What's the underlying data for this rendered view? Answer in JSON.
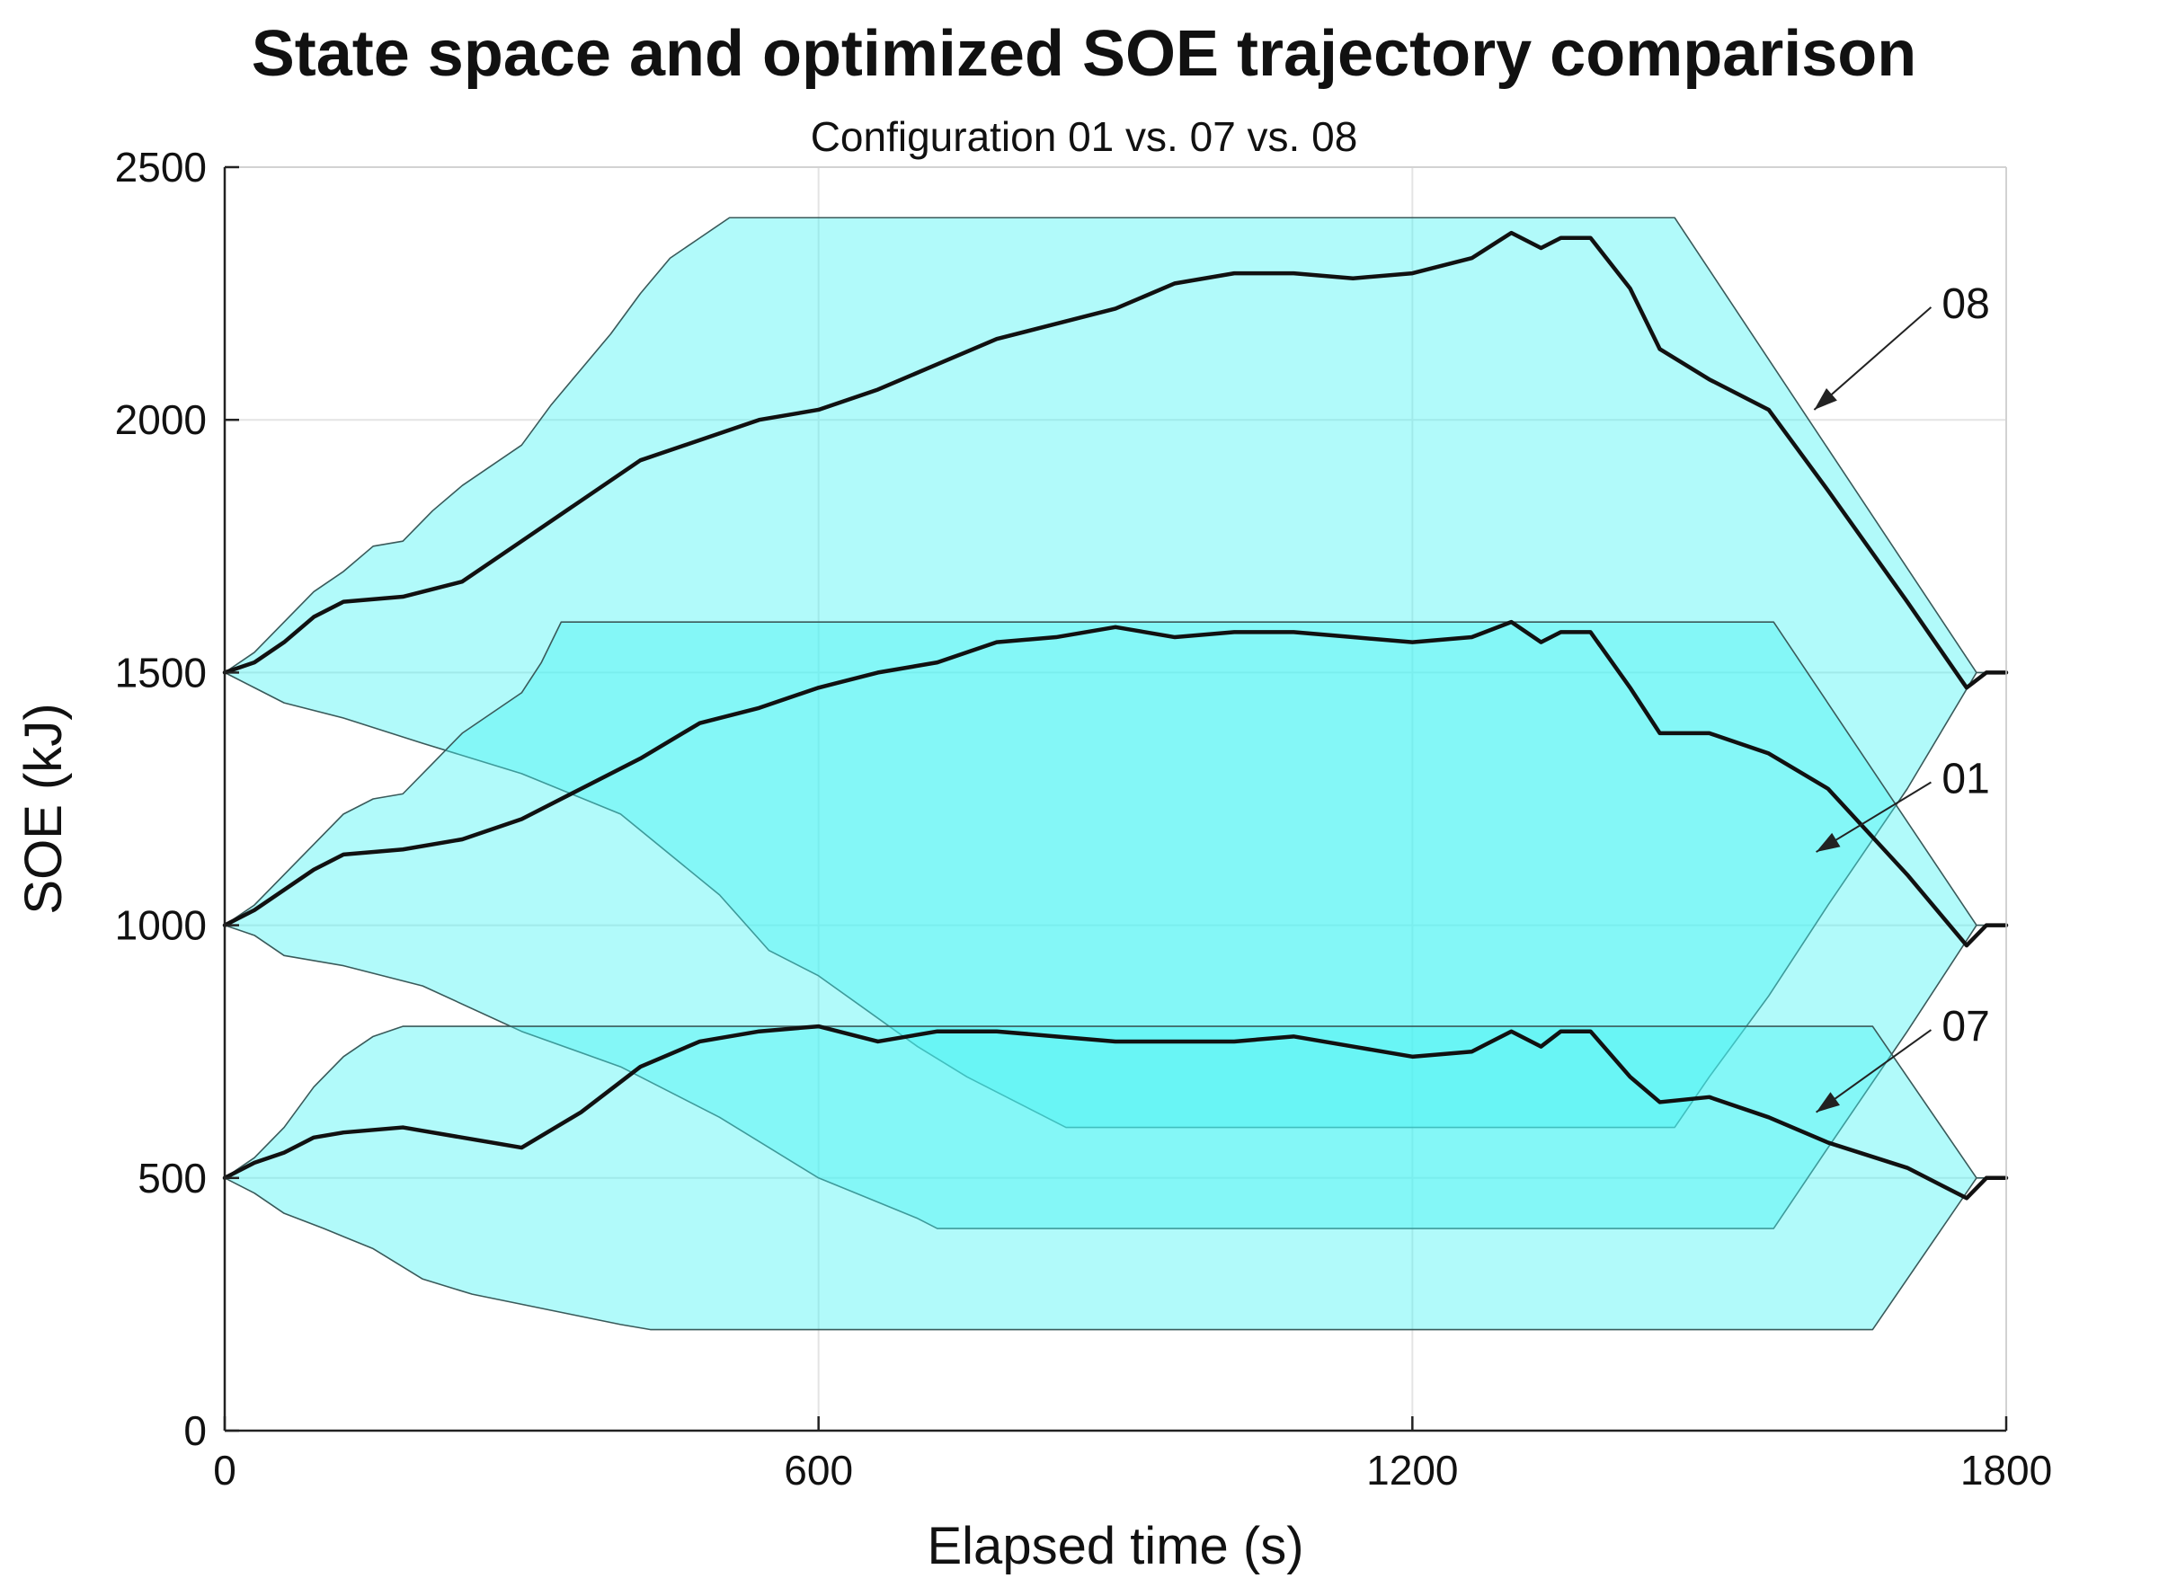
{
  "chart_data": {
    "type": "area",
    "title": "State space and optimized SOE trajectory comparison",
    "subtitle": "Configuration 01 vs. 07 vs. 08",
    "xlabel": "Elapsed time (s)",
    "ylabel": "SOE (kJ)",
    "xlim": [
      0,
      1800
    ],
    "ylim": [
      0,
      2500
    ],
    "xticks": [
      0,
      600,
      1200,
      1800
    ],
    "yticks": [
      0,
      500,
      1000,
      1500,
      2000,
      2500
    ],
    "grid": true,
    "colors": {
      "band_fill": "#44f2f2",
      "band_edge": "#3a5a5a",
      "trajectory": "#111111",
      "grid": "#e4e4e4",
      "axis": "#222222"
    },
    "series": [
      {
        "name": "08",
        "upper": {
          "x": [
            0,
            30,
            60,
            90,
            120,
            150,
            180,
            210,
            240,
            270,
            300,
            330,
            360,
            390,
            420,
            450,
            480,
            510,
            1465,
            1770,
            1800
          ],
          "y": [
            1500,
            1540,
            1600,
            1660,
            1700,
            1750,
            1760,
            1820,
            1870,
            1910,
            1950,
            2030,
            2100,
            2170,
            2250,
            2320,
            2360,
            2400,
            2400,
            1500,
            1500
          ]
        },
        "lower": {
          "x": [
            0,
            30,
            60,
            120,
            200,
            300,
            400,
            500,
            550,
            600,
            650,
            700,
            750,
            800,
            830,
            850,
            870,
            1465,
            1500,
            1560,
            1620,
            1700,
            1770,
            1800
          ],
          "y": [
            1500,
            1470,
            1440,
            1410,
            1360,
            1300,
            1220,
            1060,
            950,
            900,
            830,
            760,
            700,
            650,
            620,
            600,
            600,
            600,
            700,
            860,
            1040,
            1270,
            1500,
            1500
          ]
        },
        "trajectory": {
          "x": [
            0,
            30,
            60,
            90,
            120,
            180,
            240,
            300,
            360,
            420,
            480,
            540,
            600,
            660,
            720,
            780,
            840,
            900,
            960,
            1020,
            1080,
            1140,
            1200,
            1260,
            1300,
            1330,
            1350,
            1380,
            1420,
            1450,
            1500,
            1560,
            1620,
            1700,
            1760,
            1780,
            1800
          ],
          "y": [
            1500,
            1520,
            1560,
            1610,
            1640,
            1650,
            1680,
            1760,
            1840,
            1920,
            1960,
            2000,
            2020,
            2060,
            2110,
            2160,
            2190,
            2220,
            2270,
            2290,
            2290,
            2280,
            2290,
            2320,
            2370,
            2340,
            2360,
            2360,
            2260,
            2140,
            2080,
            2020,
            1860,
            1640,
            1470,
            1500,
            1500
          ]
        }
      },
      {
        "name": "01",
        "upper": {
          "x": [
            0,
            30,
            60,
            90,
            120,
            150,
            180,
            210,
            240,
            270,
            300,
            320,
            340,
            1565,
            1770,
            1800
          ],
          "y": [
            1000,
            1040,
            1100,
            1160,
            1220,
            1250,
            1260,
            1320,
            1380,
            1420,
            1460,
            1520,
            1600,
            1600,
            1000,
            1000
          ]
        },
        "lower": {
          "x": [
            0,
            30,
            60,
            120,
            200,
            300,
            400,
            500,
            550,
            600,
            650,
            700,
            720,
            1565,
            1620,
            1700,
            1770,
            1800
          ],
          "y": [
            1000,
            980,
            940,
            920,
            880,
            790,
            720,
            620,
            560,
            500,
            460,
            420,
            400,
            400,
            560,
            790,
            1000,
            1000
          ]
        },
        "trajectory": {
          "x": [
            0,
            30,
            60,
            90,
            120,
            180,
            240,
            300,
            360,
            420,
            480,
            540,
            600,
            660,
            720,
            780,
            840,
            900,
            960,
            1020,
            1080,
            1140,
            1200,
            1260,
            1300,
            1330,
            1350,
            1380,
            1420,
            1450,
            1500,
            1560,
            1620,
            1700,
            1760,
            1780,
            1800
          ],
          "y": [
            1000,
            1030,
            1070,
            1110,
            1140,
            1150,
            1170,
            1210,
            1270,
            1330,
            1400,
            1430,
            1470,
            1500,
            1520,
            1560,
            1570,
            1590,
            1570,
            1580,
            1580,
            1570,
            1560,
            1570,
            1600,
            1560,
            1580,
            1580,
            1470,
            1380,
            1380,
            1340,
            1270,
            1100,
            960,
            1000,
            1000
          ]
        }
      },
      {
        "name": "07",
        "upper": {
          "x": [
            0,
            30,
            60,
            90,
            120,
            150,
            180,
            1665,
            1770,
            1800
          ],
          "y": [
            500,
            540,
            600,
            680,
            740,
            780,
            800,
            800,
            500,
            500
          ]
        },
        "lower": {
          "x": [
            0,
            30,
            60,
            100,
            150,
            200,
            250,
            300,
            350,
            400,
            430,
            1665,
            1770,
            1800
          ],
          "y": [
            500,
            470,
            430,
            400,
            360,
            300,
            270,
            250,
            230,
            210,
            200,
            200,
            500,
            500
          ]
        },
        "trajectory": {
          "x": [
            0,
            30,
            60,
            90,
            120,
            180,
            240,
            300,
            360,
            420,
            480,
            540,
            600,
            660,
            720,
            780,
            840,
            900,
            960,
            1020,
            1080,
            1140,
            1200,
            1260,
            1300,
            1330,
            1350,
            1380,
            1420,
            1450,
            1500,
            1560,
            1620,
            1700,
            1760,
            1780,
            1800
          ],
          "y": [
            500,
            530,
            550,
            580,
            590,
            600,
            580,
            560,
            630,
            720,
            770,
            790,
            800,
            770,
            790,
            790,
            780,
            770,
            770,
            770,
            780,
            760,
            740,
            750,
            790,
            760,
            790,
            790,
            700,
            650,
            660,
            620,
            570,
            520,
            460,
            500,
            500
          ]
        }
      }
    ],
    "annotations": [
      {
        "label": "08",
        "series": "08",
        "text_at": [
          1735,
          2230
        ],
        "arrow_to": [
          1606,
          2020
        ]
      },
      {
        "label": "01",
        "series": "01",
        "text_at": [
          1735,
          1290
        ],
        "arrow_to": [
          1608,
          1145
        ]
      },
      {
        "label": "07",
        "series": "07",
        "text_at": [
          1735,
          800
        ],
        "arrow_to": [
          1608,
          630
        ]
      }
    ]
  }
}
